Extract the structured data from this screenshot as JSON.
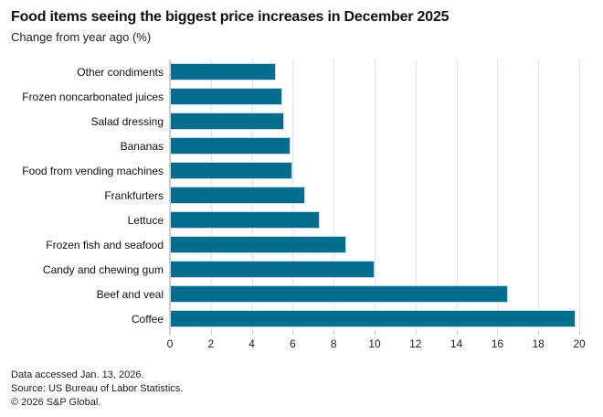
{
  "header": {
    "title": "Food items seeing the biggest price increases in December 2025",
    "subtitle": "Change from year ago (%)"
  },
  "footer": {
    "lines": [
      "Data accessed Jan. 13, 2026.",
      "Source: US Bureau of Labor Statistics.",
      "© 2026 S&P Global."
    ]
  },
  "colors": {
    "bar": "#046d8e",
    "bar_border": "#c6dae3",
    "grid": "#e3e3e3",
    "axis": "#cfcfcf",
    "text": "#111111"
  },
  "chart_data": {
    "type": "bar",
    "orientation": "horizontal",
    "title": "Food items seeing the biggest price increases in December 2025",
    "subtitle": "Change from year ago (%)",
    "xlabel": "",
    "ylabel": "",
    "categories": [
      "Other condiments",
      "Frozen noncarbonated juices",
      "Salad dressing",
      "Bananas",
      "Food from vending machines",
      "Frankfurters",
      "Lettuce",
      "Frozen fish and seafood",
      "Candy and chewing gum",
      "Beef and veal",
      "Coffee"
    ],
    "values": [
      5.2,
      5.5,
      5.6,
      5.9,
      6.0,
      6.6,
      7.3,
      8.6,
      10.0,
      16.5,
      19.8
    ],
    "xlim": [
      0,
      20
    ],
    "xticks": [
      0,
      2,
      4,
      6,
      8,
      10,
      12,
      14,
      16,
      18,
      20
    ],
    "grid": true,
    "legend": false
  }
}
